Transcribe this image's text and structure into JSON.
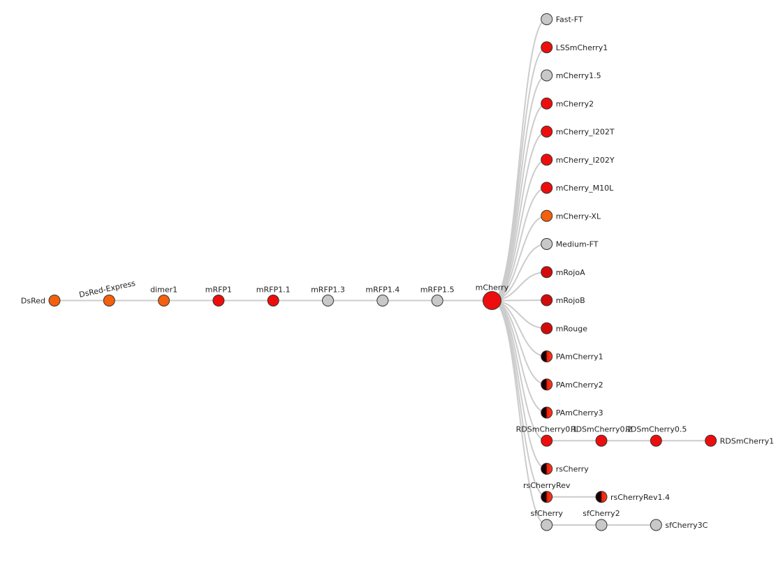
{
  "colors": {
    "orange": "#f4600d",
    "red": "#ee0d0d",
    "darkred": "#d40b0b",
    "gray": "#c8c8c8",
    "dark": "#1a0000",
    "link": "#cccccc"
  },
  "tree": {
    "name": "DsRed",
    "fill": "orange",
    "children": [
      {
        "name": "DsRed-Express",
        "fill": "orange",
        "children": [
          {
            "name": "dimer1",
            "fill": "orange",
            "children": [
              {
                "name": "mRFP1",
                "fill": "red",
                "children": [
                  {
                    "name": "mRFP1.1",
                    "fill": "red",
                    "children": [
                      {
                        "name": "mRFP1.3",
                        "fill": "gray",
                        "children": [
                          {
                            "name": "mRFP1.4",
                            "fill": "gray",
                            "children": [
                              {
                                "name": "mRFP1.5",
                                "fill": "gray",
                                "children": [
                                  {
                                    "name": "mCherry",
                                    "fill": "red",
                                    "children": [
                                      {
                                        "name": "Fast-FT",
                                        "fill": "gray"
                                      },
                                      {
                                        "name": "LSSmCherry1",
                                        "fill": "red"
                                      },
                                      {
                                        "name": "mCherry1.5",
                                        "fill": "gray"
                                      },
                                      {
                                        "name": "mCherry2",
                                        "fill": "red"
                                      },
                                      {
                                        "name": "mCherry_I202T",
                                        "fill": "red"
                                      },
                                      {
                                        "name": "mCherry_I202Y",
                                        "fill": "red"
                                      },
                                      {
                                        "name": "mCherry_M10L",
                                        "fill": "red"
                                      },
                                      {
                                        "name": "mCherry-XL",
                                        "fill": "orange"
                                      },
                                      {
                                        "name": "Medium-FT",
                                        "fill": "gray"
                                      },
                                      {
                                        "name": "mRojoA",
                                        "fill": "darkred"
                                      },
                                      {
                                        "name": "mRojoB",
                                        "fill": "darkred"
                                      },
                                      {
                                        "name": "mRouge",
                                        "fill": "darkred"
                                      },
                                      {
                                        "name": "PAmCherry1",
                                        "fill": "gradient"
                                      },
                                      {
                                        "name": "PAmCherry2",
                                        "fill": "gradient"
                                      },
                                      {
                                        "name": "PAmCherry3",
                                        "fill": "gradient"
                                      },
                                      {
                                        "name": "RDSmCherry0.1",
                                        "fill": "red",
                                        "children": [
                                          {
                                            "name": "RDSmCherry0.2",
                                            "fill": "red",
                                            "children": [
                                              {
                                                "name": "RDSmCherry0.5",
                                                "fill": "red",
                                                "children": [
                                                  {
                                                    "name": "RDSmCherry1",
                                                    "fill": "red"
                                                  }
                                                ]
                                              }
                                            ]
                                          }
                                        ]
                                      },
                                      {
                                        "name": "rsCherry",
                                        "fill": "gradient"
                                      },
                                      {
                                        "name": "rsCherryRev",
                                        "fill": "gradient",
                                        "children": [
                                          {
                                            "name": "rsCherryRev1.4",
                                            "fill": "gradient"
                                          }
                                        ]
                                      },
                                      {
                                        "name": "sfCherry",
                                        "fill": "gray",
                                        "children": [
                                          {
                                            "name": "sfCherry2",
                                            "fill": "gray",
                                            "children": [
                                              {
                                                "name": "sfCherry3C",
                                                "fill": "gray"
                                              }
                                            ]
                                          }
                                        ]
                                      }
                                    ]
                                  }
                                ]
                              }
                            ]
                          }
                        ]
                      }
                    ]
                  }
                ]
              }
            ]
          }
        ]
      }
    ]
  }
}
